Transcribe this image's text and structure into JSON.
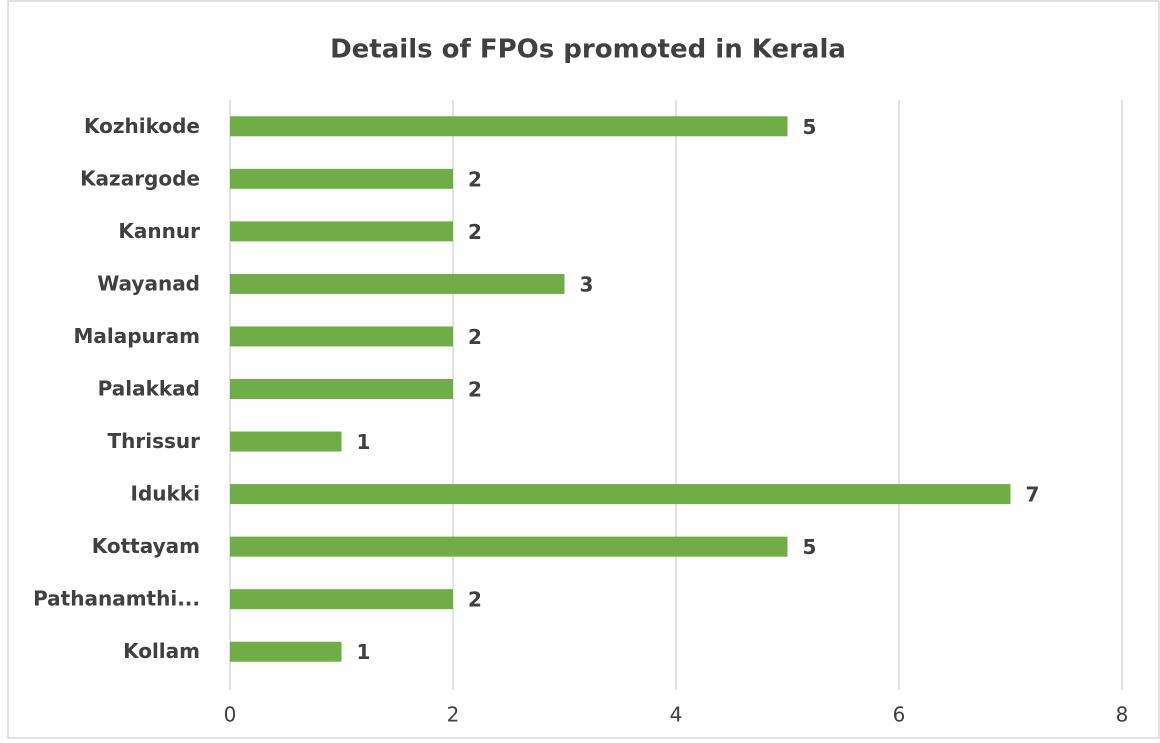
{
  "chart_data": {
    "type": "bar",
    "orientation": "horizontal",
    "title": "Details of FPOs promoted in Kerala",
    "categories": [
      "Kozhikode",
      "Kazargode",
      "Kannur",
      "Wayanad",
      "Malapuram",
      "Palakkad",
      "Thrissur",
      "Idukki",
      "Kottayam",
      "Pathanamthi...",
      "Kollam"
    ],
    "values": [
      5,
      2,
      2,
      3,
      2,
      2,
      1,
      7,
      5,
      2,
      1
    ],
    "color": "#70ad47",
    "xlim": [
      0,
      8
    ],
    "xticks": [
      0,
      2,
      4,
      6,
      8
    ],
    "grid": true
  }
}
